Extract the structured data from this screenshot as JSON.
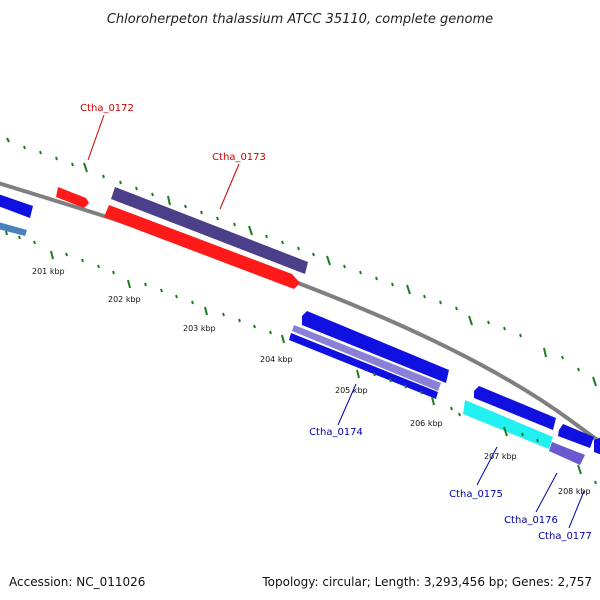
{
  "header": {
    "title": "Chloroherpeton thalassium ATCC 35110, complete genome"
  },
  "footer": {
    "accession": "Accession: NC_011026",
    "summary": "Topology: circular; Length: 3,293,456 bp; Genes: 2,757"
  },
  "colors": {
    "backbone": "#7f7f7f",
    "tick": "#1e7b1e",
    "forward_label": "#cc0000",
    "reverse_label": "#0000aa",
    "red": "#ff1a1a",
    "navy": "#4b3f8a",
    "blue": "#1010e0",
    "light_blue": "#4a7fc0",
    "cyan": "#22f0f0",
    "periwinkle": "#6a5ad0"
  },
  "ruler": {
    "kbp_labels": [
      "201 kbp",
      "202 kbp",
      "203 kbp",
      "204 kbp",
      "205 kbp",
      "206 kbp",
      "207 kbp",
      "208 kbp"
    ]
  },
  "genes": {
    "labeled": [
      "Ctha_0172",
      "Ctha_0173",
      "Ctha_0174",
      "Ctha_0175",
      "Ctha_0176",
      "Ctha_0177"
    ]
  }
}
